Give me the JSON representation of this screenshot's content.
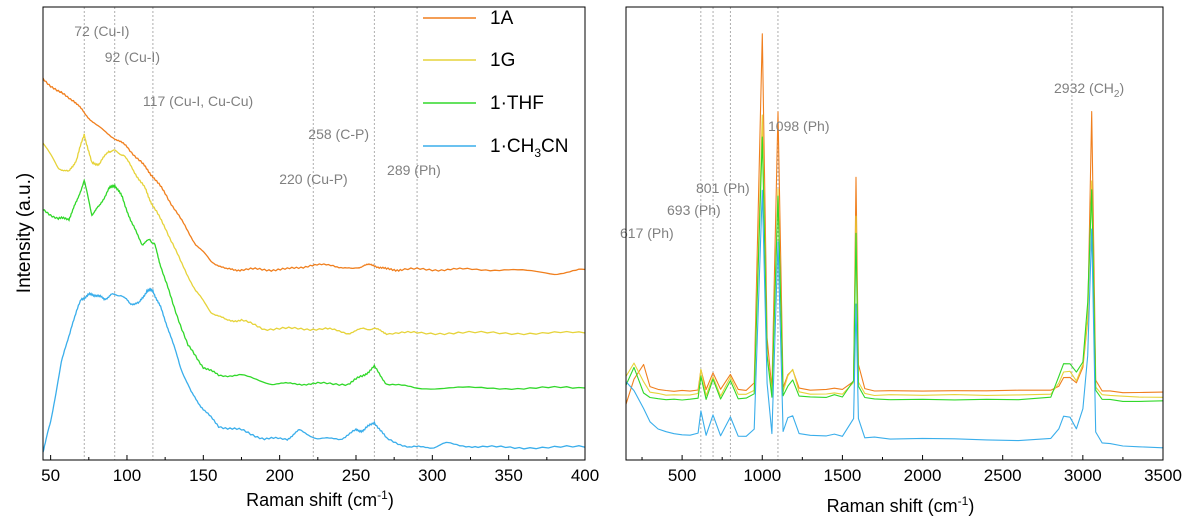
{
  "chart_data": [
    {
      "type": "line",
      "panel": "left",
      "xlabel": "Raman shift (cm",
      "xlabel_sup": "-1",
      "xlabel_tail": ")",
      "ylabel": "Intensity (a.u.)",
      "xlim": [
        45,
        400
      ],
      "xticks": [
        50,
        100,
        150,
        200,
        250,
        300,
        350,
        400
      ],
      "legend_placement": "top-right",
      "annotations": [
        {
          "x": 72,
          "label": "72 (Cu-I)"
        },
        {
          "x": 92,
          "label": "92 (Cu-I)"
        },
        {
          "x": 117,
          "label": "117 (Cu-I, Cu-Cu)"
        },
        {
          "x": 222,
          "label": "220 (Cu-P)"
        },
        {
          "x": 262,
          "label": "258 (C-P)"
        },
        {
          "x": 290,
          "label": "289 (Ph)"
        }
      ],
      "series": [
        {
          "name": "1A",
          "color": "#F07F1E",
          "x": [
            45,
            55,
            65,
            72,
            80,
            92,
            100,
            110,
            117,
            125,
            135,
            145,
            155,
            165,
            175,
            190,
            205,
            220,
            235,
            248,
            255,
            262,
            270,
            280,
            300,
            320,
            350,
            380,
            400
          ],
          "y": [
            0.88,
            0.85,
            0.83,
            0.8,
            0.77,
            0.74,
            0.72,
            0.68,
            0.65,
            0.61,
            0.55,
            0.49,
            0.45,
            0.43,
            0.43,
            0.43,
            0.43,
            0.44,
            0.44,
            0.43,
            0.44,
            0.44,
            0.43,
            0.43,
            0.43,
            0.43,
            0.43,
            0.42,
            0.43
          ]
        },
        {
          "name": "1G",
          "color": "#E6D33A",
          "x": [
            45,
            55,
            62,
            67,
            72,
            77,
            82,
            88,
            92,
            98,
            105,
            112,
            117,
            125,
            135,
            145,
            155,
            165,
            175,
            190,
            210,
            230,
            245,
            255,
            262,
            270,
            290,
            320,
            360,
            400
          ],
          "y": [
            0.73,
            0.67,
            0.66,
            0.69,
            0.75,
            0.68,
            0.68,
            0.71,
            0.71,
            0.7,
            0.66,
            0.62,
            0.58,
            0.53,
            0.45,
            0.38,
            0.33,
            0.31,
            0.31,
            0.29,
            0.29,
            0.29,
            0.28,
            0.29,
            0.29,
            0.28,
            0.28,
            0.28,
            0.28,
            0.28
          ]
        },
        {
          "name": "1·THF",
          "color": "#31D82A",
          "x": [
            45,
            55,
            62,
            67,
            72,
            77,
            82,
            88,
            92,
            97,
            103,
            110,
            115,
            118,
            122,
            130,
            140,
            150,
            160,
            175,
            195,
            210,
            225,
            245,
            255,
            262,
            270,
            290,
            320,
            360,
            400
          ],
          "y": [
            0.57,
            0.55,
            0.55,
            0.59,
            0.64,
            0.56,
            0.58,
            0.62,
            0.63,
            0.6,
            0.54,
            0.49,
            0.5,
            0.49,
            0.44,
            0.35,
            0.25,
            0.2,
            0.18,
            0.18,
            0.16,
            0.16,
            0.16,
            0.16,
            0.18,
            0.2,
            0.16,
            0.15,
            0.15,
            0.15,
            0.15
          ]
        },
        {
          "name": "1·CH3CN",
          "color": "#3AAEEB",
          "x": [
            45,
            50,
            57,
            64,
            70,
            75,
            80,
            85,
            90,
            96,
            102,
            108,
            113,
            117,
            122,
            128,
            135,
            142,
            150,
            160,
            175,
            190,
            205,
            213,
            225,
            240,
            250,
            255,
            262,
            270,
            285,
            300,
            310,
            330,
            360,
            400
          ],
          "y": [
            0.0,
            0.07,
            0.21,
            0.3,
            0.36,
            0.37,
            0.37,
            0.36,
            0.37,
            0.37,
            0.35,
            0.35,
            0.38,
            0.38,
            0.34,
            0.28,
            0.2,
            0.14,
            0.1,
            0.06,
            0.05,
            0.03,
            0.03,
            0.05,
            0.03,
            0.03,
            0.05,
            0.05,
            0.07,
            0.03,
            0.01,
            0.01,
            0.02,
            0.01,
            0.01,
            0.01
          ]
        }
      ]
    },
    {
      "type": "line",
      "panel": "right",
      "xlabel": "Raman shift (cm",
      "xlabel_sup": "-1",
      "xlabel_tail": ")",
      "xlim": [
        150,
        3500
      ],
      "xticks": [
        500,
        1000,
        1500,
        2000,
        2500,
        3000,
        3500
      ],
      "annotations": [
        {
          "x": 617,
          "label": "617 (Ph)"
        },
        {
          "x": 693,
          "label": "693 (Ph)"
        },
        {
          "x": 801,
          "label": "801 (Ph)"
        },
        {
          "x": 1098,
          "label": "1098 (Ph)"
        },
        {
          "x": 2932,
          "label": "2932 (CH",
          "sub": "2",
          "tail": ")"
        }
      ],
      "baseline_x": [
        150,
        200,
        260,
        300,
        350,
        400,
        450,
        500,
        550,
        600,
        617,
        650,
        693,
        740,
        801,
        850,
        900,
        950,
        1000,
        1030,
        1060,
        1098,
        1130,
        1160,
        1190,
        1230,
        1300,
        1400,
        1450,
        1500,
        1570,
        1585,
        1600,
        1640,
        1700,
        1800,
        2000,
        2200,
        2400,
        2600,
        2800,
        2850,
        2880,
        2920,
        2960,
        3000,
        3030,
        3055,
        3080,
        3120,
        3170,
        3250,
        3350,
        3500
      ],
      "series": [
        {
          "name": "1A",
          "color": "#F07F1E",
          "y": [
            0.32,
            0.46,
            0.55,
            0.42,
            0.41,
            0.4,
            0.4,
            0.4,
            0.4,
            0.4,
            0.52,
            0.4,
            0.5,
            0.4,
            0.49,
            0.4,
            0.4,
            0.44,
            2.45,
            0.7,
            0.41,
            2.0,
            0.42,
            0.49,
            0.52,
            0.41,
            0.4,
            0.4,
            0.41,
            0.4,
            0.45,
            1.62,
            0.55,
            0.41,
            0.4,
            0.4,
            0.4,
            0.4,
            0.4,
            0.4,
            0.4,
            0.42,
            0.47,
            0.47,
            0.44,
            0.53,
            0.8,
            2.0,
            0.46,
            0.4,
            0.4,
            0.39,
            0.39,
            0.39
          ]
        },
        {
          "name": "1G",
          "color": "#E6D33A",
          "y": [
            0.48,
            0.56,
            0.45,
            0.39,
            0.38,
            0.37,
            0.37,
            0.37,
            0.37,
            0.38,
            0.52,
            0.37,
            0.48,
            0.37,
            0.48,
            0.38,
            0.38,
            0.4,
            1.98,
            0.6,
            0.38,
            1.55,
            0.39,
            0.48,
            0.52,
            0.39,
            0.38,
            0.38,
            0.39,
            0.38,
            0.45,
            1.4,
            0.45,
            0.38,
            0.37,
            0.37,
            0.37,
            0.37,
            0.37,
            0.37,
            0.38,
            0.44,
            0.51,
            0.51,
            0.46,
            0.55,
            0.82,
            1.6,
            0.42,
            0.37,
            0.37,
            0.36,
            0.36,
            0.36
          ]
        },
        {
          "name": "1·THF",
          "color": "#31D82A",
          "y": [
            0.43,
            0.53,
            0.38,
            0.36,
            0.35,
            0.35,
            0.35,
            0.35,
            0.35,
            0.36,
            0.48,
            0.35,
            0.46,
            0.35,
            0.45,
            0.35,
            0.35,
            0.38,
            1.85,
            0.6,
            0.36,
            1.52,
            0.37,
            0.43,
            0.46,
            0.37,
            0.36,
            0.36,
            0.37,
            0.36,
            0.45,
            1.3,
            0.42,
            0.36,
            0.35,
            0.35,
            0.35,
            0.35,
            0.35,
            0.35,
            0.36,
            0.48,
            0.55,
            0.55,
            0.5,
            0.56,
            0.9,
            1.55,
            0.4,
            0.35,
            0.35,
            0.34,
            0.34,
            0.34
          ]
        },
        {
          "name": "1·CH3CN",
          "color": "#3AAEEB",
          "y": [
            0.45,
            0.4,
            0.3,
            0.22,
            0.18,
            0.16,
            0.15,
            0.14,
            0.14,
            0.15,
            0.28,
            0.14,
            0.26,
            0.14,
            0.25,
            0.14,
            0.14,
            0.18,
            1.55,
            0.44,
            0.15,
            1.25,
            0.16,
            0.24,
            0.25,
            0.15,
            0.14,
            0.14,
            0.15,
            0.14,
            0.24,
            0.9,
            0.24,
            0.13,
            0.13,
            0.12,
            0.12,
            0.12,
            0.11,
            0.11,
            0.12,
            0.18,
            0.25,
            0.25,
            0.18,
            0.3,
            0.6,
            1.33,
            0.16,
            0.1,
            0.09,
            0.08,
            0.07,
            0.07
          ]
        }
      ]
    }
  ]
}
